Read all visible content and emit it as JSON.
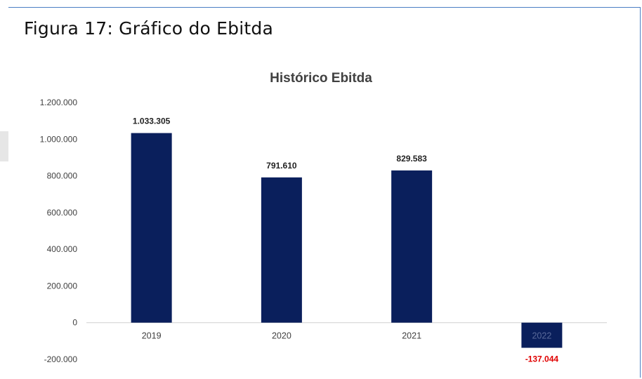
{
  "figure_title": "Figura 17: Gráfico do Ebitda",
  "chart_data": {
    "type": "bar",
    "title": "Histórico Ebitda",
    "categories": [
      "2019",
      "2020",
      "2021",
      "2022"
    ],
    "values": [
      1033305,
      791610,
      829583,
      -137044
    ],
    "value_labels": [
      "1.033.305",
      "791.610",
      "829.583",
      "-137.044"
    ],
    "ylim": [
      -200000,
      1200000
    ],
    "yticks": [
      1200000,
      1000000,
      800000,
      600000,
      400000,
      200000,
      0,
      -200000
    ],
    "ytick_labels": [
      "1.200.000",
      "1.000.000",
      "800.000",
      "600.000",
      "400.000",
      "200.000",
      "0",
      "-200.000"
    ],
    "xlabel": "",
    "ylabel": "",
    "grid": false,
    "legend": "none",
    "colors": {
      "bar": "#0a1f5c",
      "negative_label": "#e00000",
      "label": "#222222",
      "axis_text": "#404040"
    }
  }
}
